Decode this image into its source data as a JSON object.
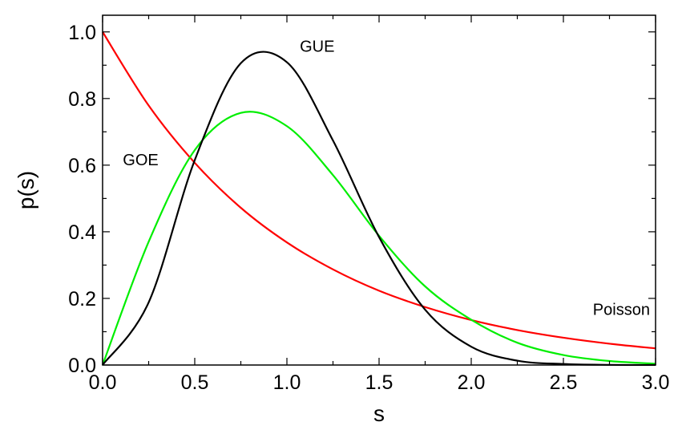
{
  "chart_data": {
    "type": "line",
    "title": "",
    "xlabel": "s",
    "ylabel": "p(s)",
    "xlim": [
      0,
      3
    ],
    "ylim": [
      0,
      1.05
    ],
    "x_ticks": [
      0,
      0.5,
      1,
      1.5,
      2,
      2.5,
      3
    ],
    "x_tick_labels": [
      "0.0",
      "0.5",
      "1.0",
      "1.5",
      "2.0",
      "2.5",
      "3.0"
    ],
    "y_ticks": [
      0,
      0.2,
      0.4,
      0.6,
      0.8,
      1
    ],
    "y_tick_labels": [
      "0.0",
      "0.2",
      "0.4",
      "0.6",
      "0.8",
      "1.0"
    ],
    "grid": false,
    "series": [
      {
        "name": "Poisson",
        "color": "#ff0000",
        "x": [
          0,
          0.25,
          0.5,
          0.75,
          1,
          1.25,
          1.5,
          1.75,
          2,
          2.25,
          2.5,
          2.75,
          3
        ],
        "values": [
          1,
          0.779,
          0.607,
          0.472,
          0.368,
          0.287,
          0.223,
          0.174,
          0.135,
          0.105,
          0.082,
          0.064,
          0.05
        ]
      },
      {
        "name": "GOE",
        "color": "#00ee00",
        "x": [
          0,
          0.25,
          0.5,
          0.75,
          1,
          1.25,
          1.5,
          1.75,
          2,
          2.25,
          2.5,
          2.75,
          3
        ],
        "values": [
          0,
          0.37,
          0.645,
          0.757,
          0.717,
          0.57,
          0.388,
          0.236,
          0.136,
          0.067,
          0.03,
          0.012,
          0.004
        ]
      },
      {
        "name": "GUE",
        "color": "#000000",
        "x": [
          0,
          0.25,
          0.5,
          0.75,
          1,
          1.25,
          1.5,
          1.75,
          2,
          2.25,
          2.5,
          2.75,
          3
        ],
        "values": [
          0,
          0.188,
          0.615,
          0.906,
          0.909,
          0.674,
          0.384,
          0.166,
          0.055,
          0.013,
          0.003,
          0.0005,
          0.0001
        ]
      }
    ],
    "annotations": [
      {
        "text": "GUE",
        "x": 1.07,
        "y": 0.94
      },
      {
        "text": "GOE",
        "x": 0.11,
        "y": 0.6
      },
      {
        "text": "Poisson",
        "x": 2.66,
        "y": 0.15
      }
    ]
  }
}
